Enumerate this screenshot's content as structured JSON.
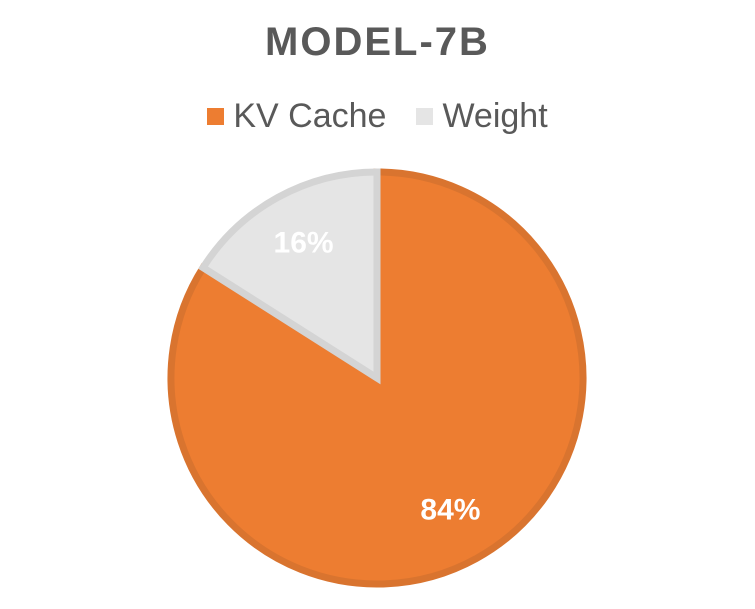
{
  "chart_data": {
    "type": "pie",
    "title": "MODEL-7B",
    "legend_position": "top",
    "categories": [
      "KV Cache",
      "Weight"
    ],
    "values": [
      84,
      16
    ],
    "labels": [
      "84%",
      "16%"
    ],
    "colors": [
      "#ED7D31",
      "#E5E5E5"
    ],
    "edge_colors": [
      "#D9742F",
      "#D4D4D4"
    ],
    "start_angle_deg": 0,
    "direction": "clockwise"
  }
}
